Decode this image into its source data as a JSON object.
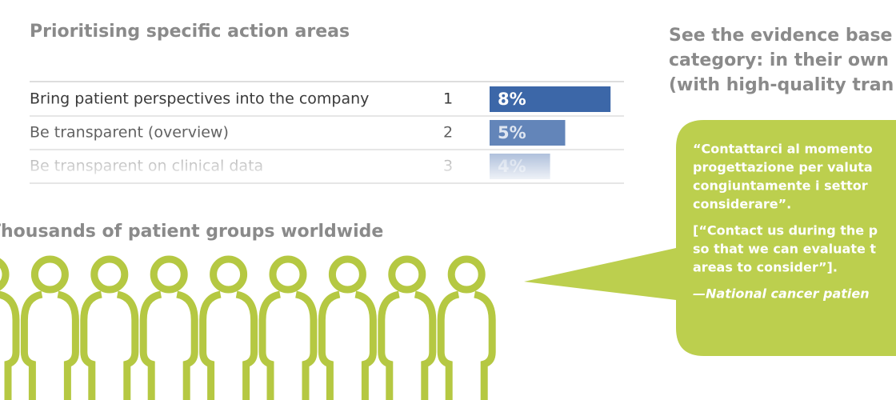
{
  "left": {
    "title": "Prioritising specific action areas",
    "table": {
      "rows": [
        {
          "label": "Bring patient perspectives into the company",
          "rank": 1,
          "value": 8,
          "value_label": "8%"
        },
        {
          "label": "Be transparent (overview)",
          "rank": 2,
          "value": 5,
          "value_label": "5%"
        },
        {
          "label": "Be transparent on clinical data",
          "rank": 3,
          "value": 4,
          "value_label": "4%"
        }
      ]
    },
    "groups_title": "Thousands of patient groups worldwide"
  },
  "right": {
    "heading": [
      "See the evidence base",
      "category:  in their own",
      "(with high-quality tran"
    ],
    "quote": [
      "“Contattarci al momento",
      "progettazione per valuta",
      "congiuntamente i settor",
      "considerare”."
    ],
    "translation": [
      "[“Contact us during the p",
      "so that we can evaluate t",
      "areas to consider”]."
    ],
    "attribution": "—National cancer patien"
  }
}
